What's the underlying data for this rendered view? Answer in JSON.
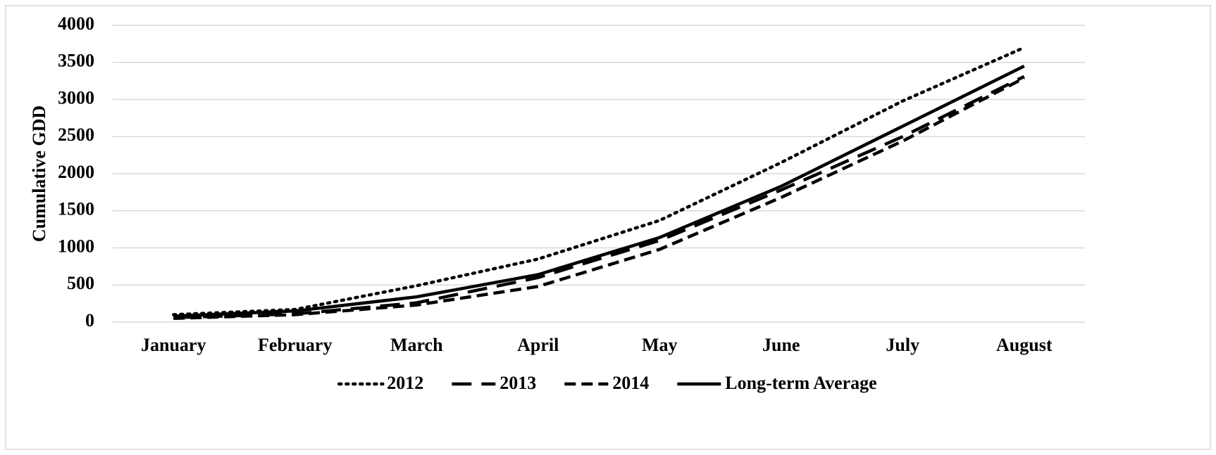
{
  "chart_data": {
    "type": "line",
    "y_label": "Cumulative GDD",
    "categories": [
      "January",
      "February",
      "March",
      "April",
      "May",
      "June",
      "July",
      "August"
    ],
    "series": [
      {
        "name": "2012",
        "color": "#000000",
        "dash": "dotted",
        "values": [
          100,
          170,
          490,
          850,
          1370,
          2150,
          2980,
          3700
        ]
      },
      {
        "name": "2013",
        "color": "#000000",
        "dash": "long-dash",
        "values": [
          60,
          110,
          260,
          600,
          1100,
          1780,
          2500,
          3310
        ]
      },
      {
        "name": "2014",
        "color": "#000000",
        "dash": "dash",
        "values": [
          50,
          100,
          230,
          480,
          980,
          1680,
          2440,
          3290
        ]
      },
      {
        "name": "Long-term Average",
        "color": "#000000",
        "dash": "solid",
        "values": [
          80,
          150,
          340,
          640,
          1140,
          1830,
          2640,
          3450
        ]
      }
    ],
    "ylim": [
      0,
      4000
    ],
    "yticks": [
      0,
      500,
      1000,
      1500,
      2000,
      2500,
      3000,
      3500,
      4000
    ],
    "grid": true,
    "legend": "bottom"
  }
}
